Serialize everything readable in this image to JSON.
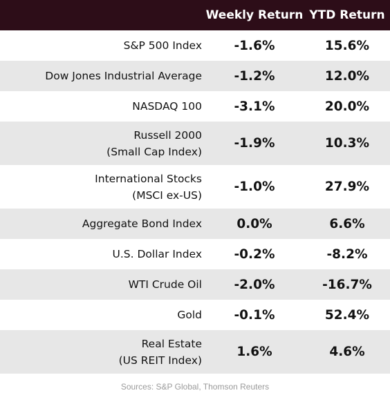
{
  "header": {
    "label_col": "",
    "weekly_return": "Weekly Return",
    "ytd_return": "YTD Return"
  },
  "rows": [
    {
      "label_line1": "S&P 500 Index",
      "label_line2": "",
      "weekly": "-1.6%",
      "ytd": "15.6%"
    },
    {
      "label_line1": "Dow Jones Industrial Average",
      "label_line2": "",
      "weekly": "-1.2%",
      "ytd": "12.0%"
    },
    {
      "label_line1": "NASDAQ 100",
      "label_line2": "",
      "weekly": "-3.1%",
      "ytd": "20.0%"
    },
    {
      "label_line1": "Russell 2000",
      "label_line2": "(Small Cap Index)",
      "weekly": "-1.9%",
      "ytd": "10.3%"
    },
    {
      "label_line1": "International Stocks",
      "label_line2": "(MSCI ex-US)",
      "weekly": "-1.0%",
      "ytd": "27.9%"
    },
    {
      "label_line1": "Aggregate Bond Index",
      "label_line2": "",
      "weekly": "0.0%",
      "ytd": "6.6%"
    },
    {
      "label_line1": "U.S. Dollar Index",
      "label_line2": "",
      "weekly": "-0.2%",
      "ytd": "-8.2%"
    },
    {
      "label_line1": "WTI Crude Oil",
      "label_line2": "",
      "weekly": "-2.0%",
      "ytd": "-16.7%"
    },
    {
      "label_line1": "Gold",
      "label_line2": "",
      "weekly": "-0.1%",
      "ytd": "52.4%"
    },
    {
      "label_line1": "Real Estate",
      "label_line2": "(US REIT Index)",
      "weekly": "1.6%",
      "ytd": "4.6%"
    }
  ],
  "source": "Sources: S&P Global, Thomson Reuters",
  "colors": {
    "header_bg": "#2d0d18",
    "header_text": "#ffffff",
    "row_alt_bg": "#e7e7e7",
    "source_text": "#9a9a9a"
  }
}
